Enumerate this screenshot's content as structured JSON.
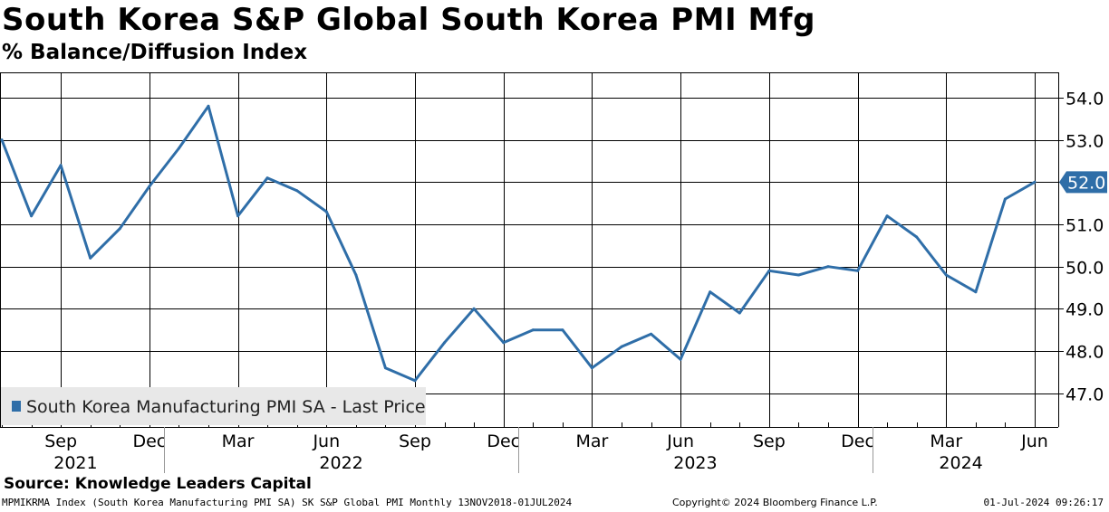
{
  "title": "South Korea S&P Global South Korea PMI Mfg",
  "subtitle": "% Balance/Diffusion Index",
  "source": "Source: Knowledge Leaders Capital",
  "footer": {
    "left": "MPMIKRMA Index (South Korea Manufacturing PMI SA) SK S&P Global PMI  Monthly 13NOV2018-01JUL2024",
    "middle": "Copyright© 2024 Bloomberg Finance L.P.",
    "right": "01-Jul-2024 09:26:17"
  },
  "colors": {
    "line": "#2f6ea8",
    "grid": "#000000",
    "legend_bg": "#e8e8e8",
    "last_label_bg": "#2f6ea8"
  },
  "chart_data": {
    "type": "line",
    "series": [
      {
        "name": "South Korea Manufacturing PMI SA - Last Price",
        "x": [
          "2021-07",
          "2021-08",
          "2021-09",
          "2021-10",
          "2021-11",
          "2021-12",
          "2022-01",
          "2022-02",
          "2022-03",
          "2022-04",
          "2022-05",
          "2022-06",
          "2022-07",
          "2022-08",
          "2022-09",
          "2022-10",
          "2022-11",
          "2022-12",
          "2023-01",
          "2023-02",
          "2023-03",
          "2023-04",
          "2023-05",
          "2023-06",
          "2023-07",
          "2023-08",
          "2023-09",
          "2023-10",
          "2023-11",
          "2023-12",
          "2024-01",
          "2024-02",
          "2024-03",
          "2024-04",
          "2024-05",
          "2024-06"
        ],
        "values": [
          53.0,
          51.2,
          52.4,
          50.2,
          50.9,
          51.9,
          52.8,
          53.8,
          51.2,
          52.1,
          51.8,
          51.3,
          49.8,
          47.6,
          47.3,
          48.2,
          49.0,
          48.2,
          48.5,
          48.5,
          47.6,
          48.1,
          48.4,
          47.8,
          49.4,
          48.9,
          49.9,
          49.8,
          50.0,
          49.9,
          51.2,
          50.7,
          49.8,
          49.4,
          51.6,
          52.0
        ]
      }
    ],
    "last_value_label": "52.0",
    "y_ticks": [
      "47.0",
      "48.0",
      "49.0",
      "50.0",
      "51.0",
      "52.0",
      "53.0",
      "54.0"
    ],
    "ylim": [
      46.2,
      54.6
    ],
    "x_month_ticks": [
      {
        "label": "Sep",
        "date": "2021-09"
      },
      {
        "label": "Dec",
        "date": "2021-12"
      },
      {
        "label": "Mar",
        "date": "2022-03"
      },
      {
        "label": "Jun",
        "date": "2022-06"
      },
      {
        "label": "Sep",
        "date": "2022-09"
      },
      {
        "label": "Dec",
        "date": "2022-12"
      },
      {
        "label": "Mar",
        "date": "2023-03"
      },
      {
        "label": "Jun",
        "date": "2023-06"
      },
      {
        "label": "Sep",
        "date": "2023-09"
      },
      {
        "label": "Dec",
        "date": "2023-12"
      },
      {
        "label": "Mar",
        "date": "2024-03"
      },
      {
        "label": "Jun",
        "date": "2024-06"
      }
    ],
    "x_year_labels": [
      "2021",
      "2022",
      "2023",
      "2024"
    ],
    "grid": true,
    "y_axis_side": "right",
    "legend_placement": "bottom-left"
  }
}
